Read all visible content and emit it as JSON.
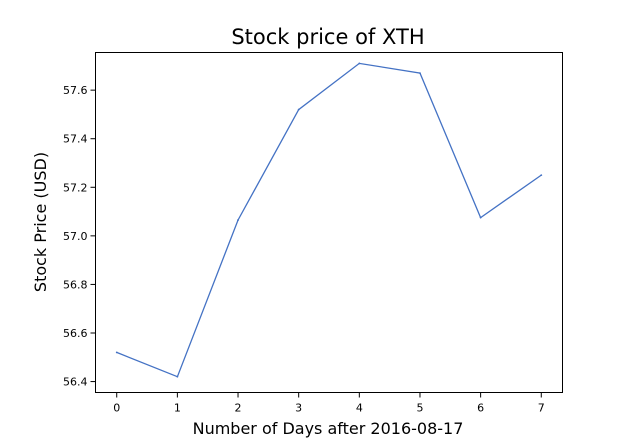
{
  "chart_data": {
    "type": "line",
    "title": "Stock price of XTH",
    "xlabel": "Number of Days after 2016-08-17",
    "ylabel": "Stock Price (USD)",
    "x": [
      0,
      1,
      2,
      3,
      4,
      5,
      6,
      7
    ],
    "series": [
      {
        "values": [
          56.52,
          56.42,
          57.065,
          57.52,
          57.71,
          57.67,
          57.075,
          57.25
        ],
        "color": "#4472c4"
      }
    ],
    "xlim": [
      -0.35,
      7.35
    ],
    "ylim": [
      56.355,
      57.755
    ],
    "x_ticks": [
      "0",
      "1",
      "2",
      "3",
      "4",
      "5",
      "6",
      "7"
    ],
    "y_ticks": [
      "56.4",
      "56.6",
      "56.8",
      "57.0",
      "57.2",
      "57.4",
      "57.6"
    ],
    "grid": false,
    "legend": "none"
  }
}
